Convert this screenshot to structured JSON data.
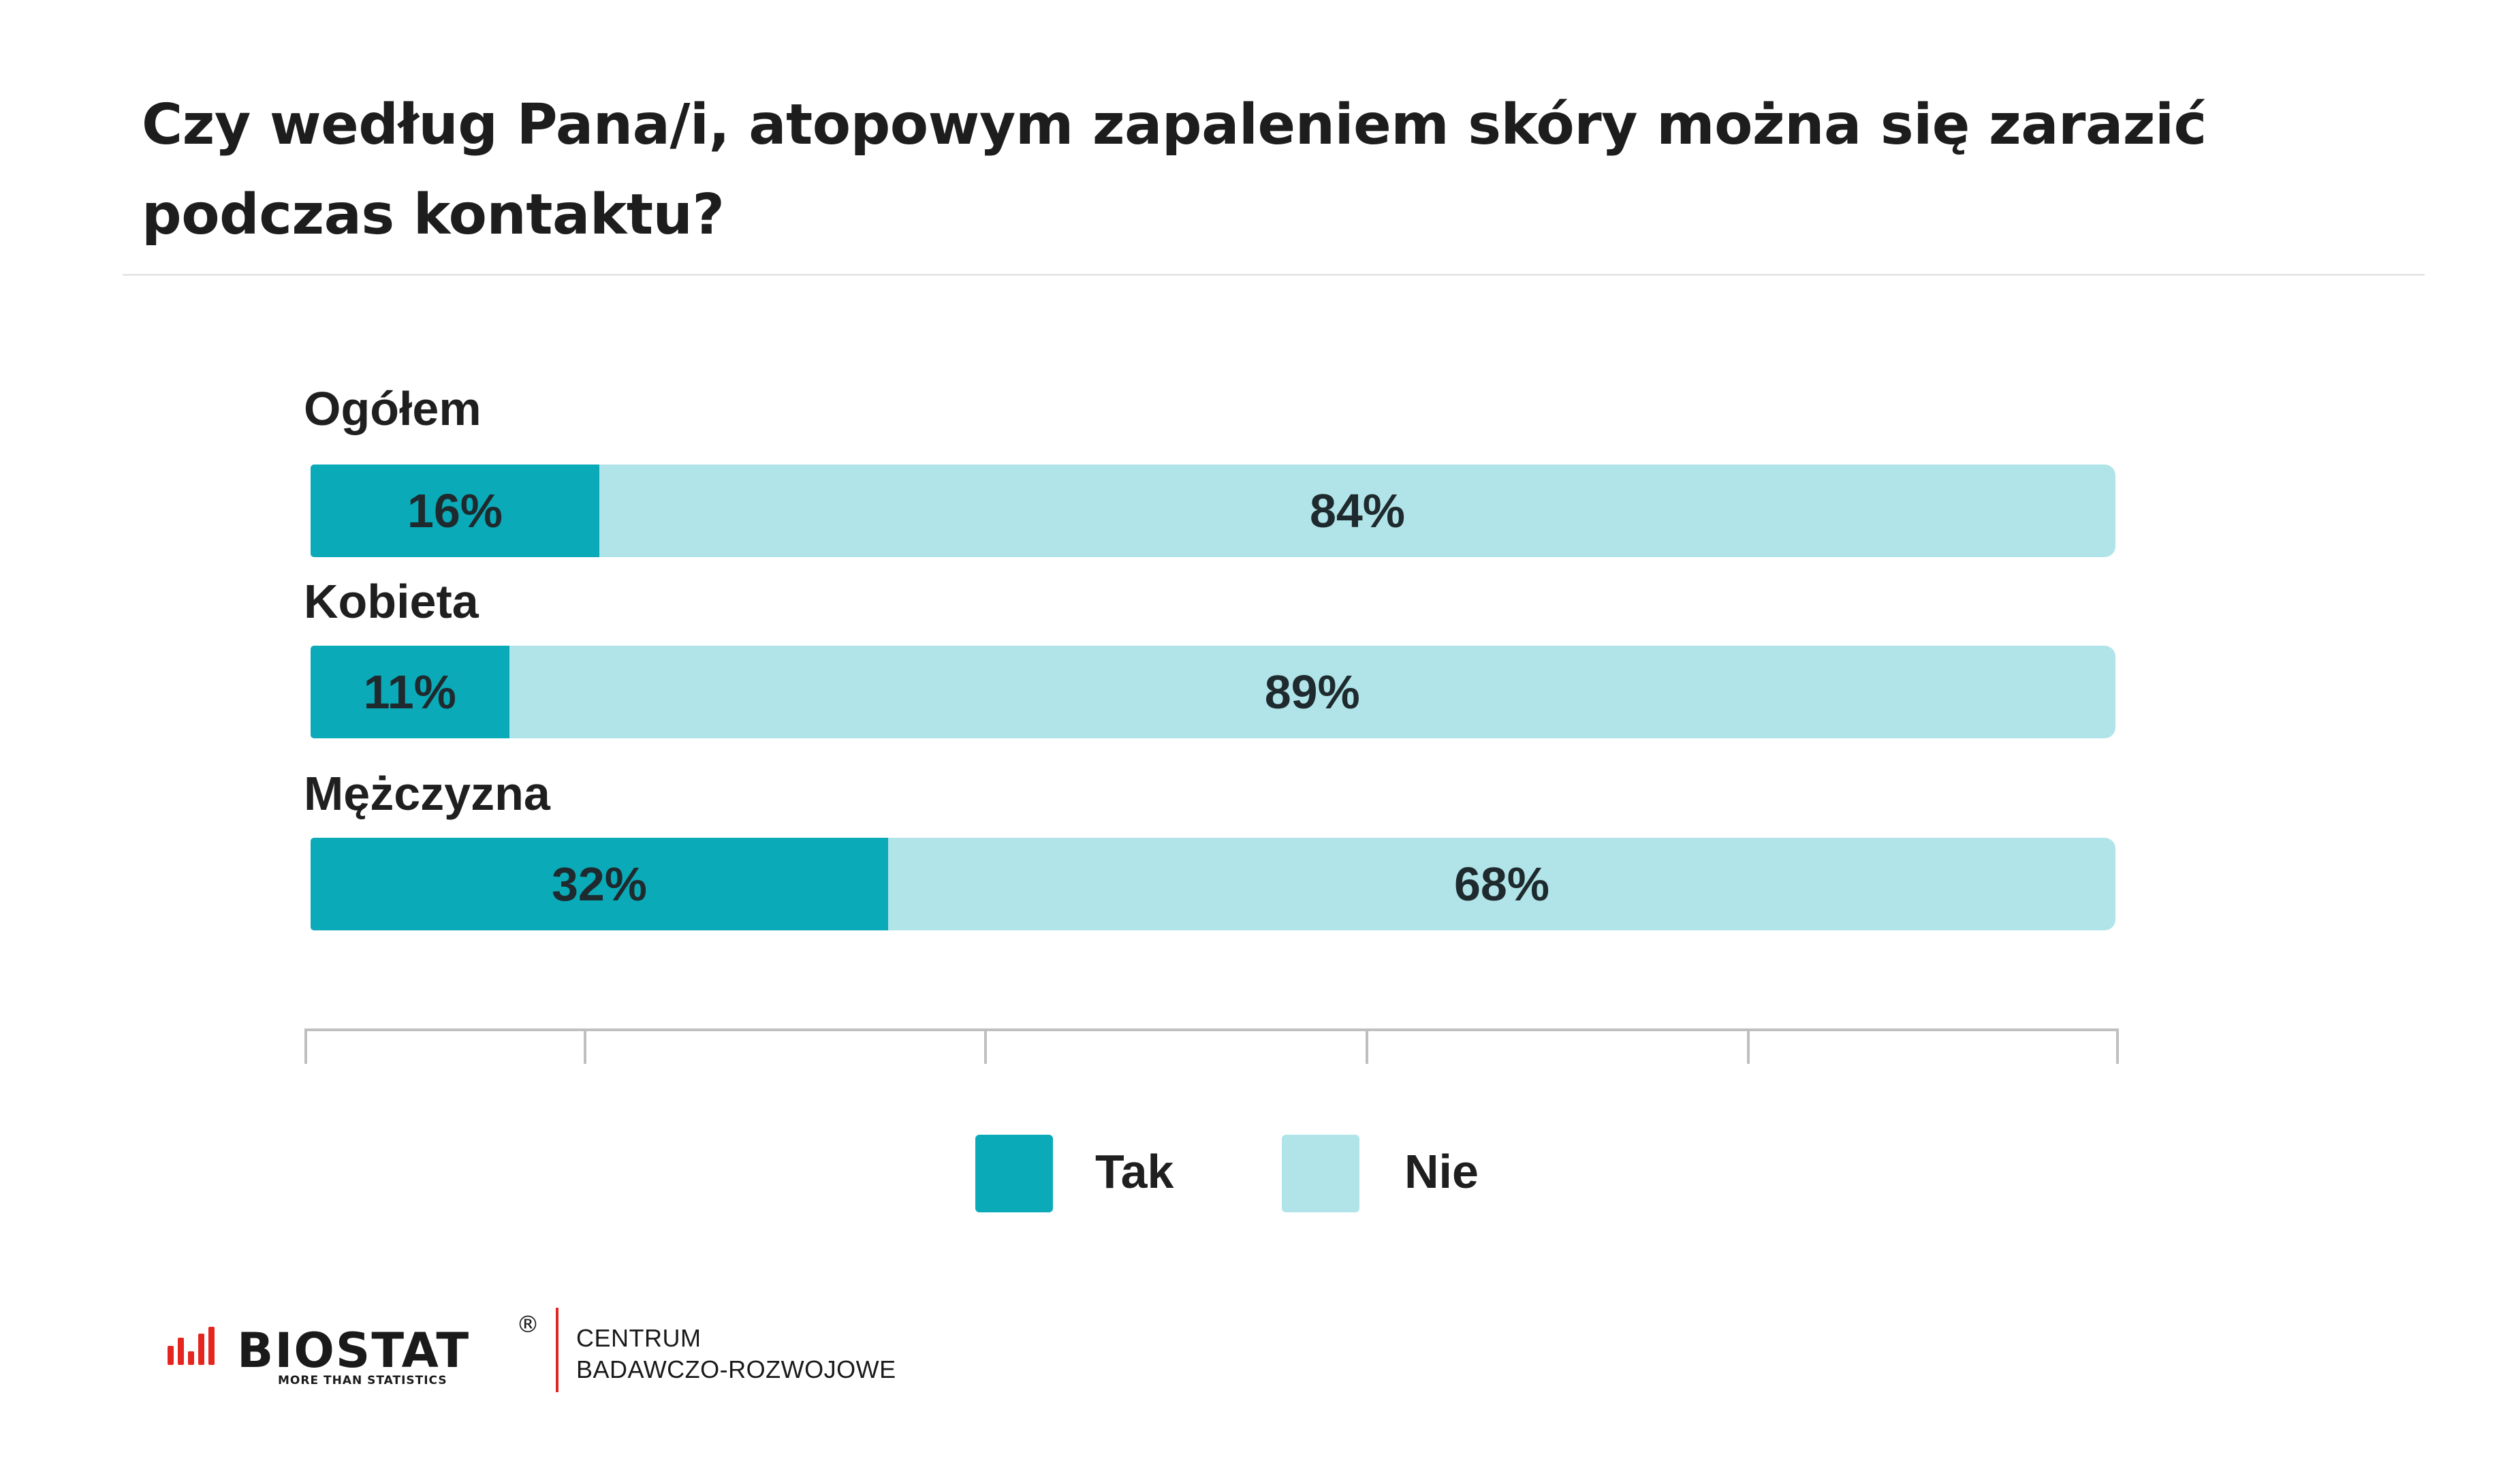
{
  "colors": {
    "tak": "#0aaab8",
    "nie": "#b0e4e8",
    "axis": "#bfbfbf",
    "accent_red": "#e52620"
  },
  "header": {
    "title_line1": "Czy według Pana/i, atopowym zapaleniem skóry można się zarazić",
    "title_line2": "podczas kontaktu?"
  },
  "chart_data": {
    "type": "bar",
    "orientation": "horizontal",
    "stacked": true,
    "categories": [
      "Ogółem",
      "Kobieta",
      "Mężczyzna"
    ],
    "series": [
      {
        "name": "Tak",
        "values": [
          16,
          11,
          32
        ],
        "labels": [
          "16%",
          "11%",
          "32%"
        ]
      },
      {
        "name": "Nie",
        "values": [
          84,
          89,
          68
        ],
        "labels": [
          "84%",
          "89%",
          "68%"
        ]
      }
    ],
    "xlim": [
      0,
      100
    ],
    "legend": "bottom-center",
    "grid": false
  },
  "footer": {
    "brand": "BIOSTAT",
    "tagline": "MORE THAN STATISTICS",
    "registered": "®",
    "org_line1": "CENTRUM",
    "org_line2": "BADAWCZO-ROZWOJOWE"
  }
}
